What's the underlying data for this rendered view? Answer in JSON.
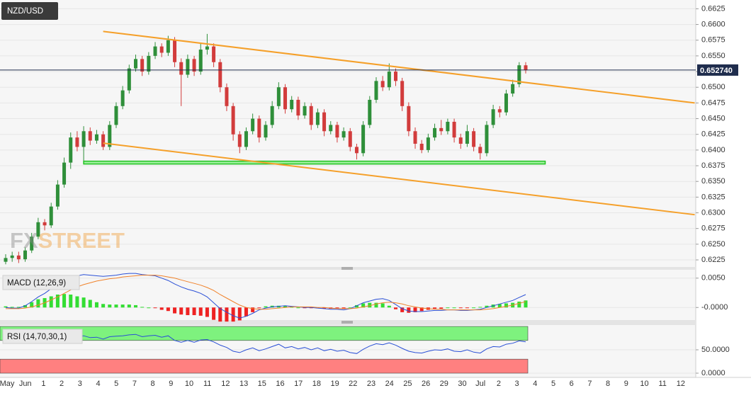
{
  "symbol": "NZD/USD",
  "watermark": [
    "FX",
    "STREET"
  ],
  "x_axis": {
    "labels": [
      "May",
      "Jun",
      "1",
      "2",
      "3",
      "4",
      "5",
      "7",
      "8",
      "9",
      "10",
      "11",
      "12",
      "13",
      "15",
      "16",
      "17",
      "18",
      "19",
      "22",
      "23",
      "24",
      "25",
      "26",
      "29",
      "30",
      "Jul",
      "2",
      "3",
      "4",
      "5",
      "6",
      "7",
      "8",
      "9",
      "10",
      "11",
      "12"
    ]
  },
  "chart_data": [
    {
      "type": "candlestick",
      "open": [
        0.6222,
        0.6228,
        0.6232,
        0.6226,
        0.624,
        0.6262,
        0.6285,
        0.628,
        0.631,
        0.6345,
        0.638,
        0.642,
        0.6405,
        0.643,
        0.6415,
        0.6425,
        0.6405,
        0.644,
        0.647,
        0.6495,
        0.653,
        0.6545,
        0.6525,
        0.655,
        0.6565,
        0.6555,
        0.6575,
        0.654,
        0.652,
        0.6545,
        0.6525,
        0.656,
        0.6565,
        0.654,
        0.65,
        0.647,
        0.6425,
        0.6405,
        0.643,
        0.645,
        0.642,
        0.644,
        0.647,
        0.65,
        0.6465,
        0.648,
        0.6455,
        0.647,
        0.644,
        0.646,
        0.643,
        0.644,
        0.642,
        0.643,
        0.6405,
        0.6395,
        0.644,
        0.648,
        0.651,
        0.65,
        0.6525,
        0.651,
        0.647,
        0.643,
        0.641,
        0.64,
        0.642,
        0.6435,
        0.643,
        0.6445,
        0.642,
        0.641,
        0.643,
        0.6405,
        0.6395,
        0.644,
        0.6465,
        0.646,
        0.649,
        0.6505,
        0.6535
      ],
      "high": [
        0.6234,
        0.6238,
        0.6238,
        0.6245,
        0.6268,
        0.6292,
        0.629,
        0.6316,
        0.6352,
        0.6388,
        0.6428,
        0.643,
        0.6438,
        0.6436,
        0.6432,
        0.643,
        0.6446,
        0.6476,
        0.6502,
        0.6536,
        0.6552,
        0.655,
        0.6556,
        0.6572,
        0.657,
        0.6582,
        0.658,
        0.6546,
        0.6552,
        0.655,
        0.657,
        0.6585,
        0.657,
        0.6545,
        0.6506,
        0.6475,
        0.643,
        0.6436,
        0.6458,
        0.6455,
        0.6446,
        0.6478,
        0.6508,
        0.6505,
        0.6486,
        0.6485,
        0.6476,
        0.6475,
        0.6466,
        0.6465,
        0.6446,
        0.6445,
        0.6436,
        0.6435,
        0.641,
        0.6446,
        0.6486,
        0.6516,
        0.6518,
        0.6538,
        0.653,
        0.6515,
        0.6476,
        0.6436,
        0.6416,
        0.6426,
        0.6442,
        0.6448,
        0.645,
        0.645,
        0.6426,
        0.644,
        0.6435,
        0.641,
        0.6446,
        0.6472,
        0.647,
        0.6496,
        0.6512,
        0.654,
        0.654
      ],
      "low": [
        0.6218,
        0.6222,
        0.622,
        0.6222,
        0.6236,
        0.6258,
        0.6272,
        0.6276,
        0.6305,
        0.634,
        0.637,
        0.6398,
        0.638,
        0.6408,
        0.641,
        0.64,
        0.64,
        0.6435,
        0.6465,
        0.649,
        0.6525,
        0.6518,
        0.652,
        0.6545,
        0.6548,
        0.655,
        0.6532,
        0.647,
        0.6515,
        0.6518,
        0.652,
        0.6552,
        0.6532,
        0.6492,
        0.6462,
        0.6415,
        0.6395,
        0.64,
        0.6425,
        0.6412,
        0.6415,
        0.6435,
        0.6465,
        0.6458,
        0.646,
        0.6448,
        0.645,
        0.6432,
        0.6435,
        0.6422,
        0.6425,
        0.6412,
        0.6415,
        0.6398,
        0.6385,
        0.639,
        0.6435,
        0.6475,
        0.6494,
        0.6495,
        0.6502,
        0.6462,
        0.6422,
        0.6402,
        0.6395,
        0.6396,
        0.6415,
        0.6424,
        0.6425,
        0.6412,
        0.6402,
        0.6405,
        0.6398,
        0.6385,
        0.639,
        0.6435,
        0.6452,
        0.6455,
        0.6485,
        0.65,
        0.6522
      ],
      "close": [
        0.6228,
        0.6232,
        0.6226,
        0.624,
        0.6262,
        0.6285,
        0.628,
        0.631,
        0.6345,
        0.638,
        0.642,
        0.6405,
        0.643,
        0.6415,
        0.6425,
        0.6405,
        0.644,
        0.647,
        0.6495,
        0.653,
        0.6545,
        0.6525,
        0.655,
        0.6565,
        0.6555,
        0.6575,
        0.654,
        0.652,
        0.6545,
        0.6525,
        0.656,
        0.6565,
        0.654,
        0.65,
        0.647,
        0.6425,
        0.6405,
        0.643,
        0.645,
        0.642,
        0.644,
        0.647,
        0.65,
        0.6465,
        0.648,
        0.6455,
        0.647,
        0.644,
        0.646,
        0.643,
        0.644,
        0.642,
        0.643,
        0.6405,
        0.6395,
        0.644,
        0.648,
        0.651,
        0.65,
        0.6525,
        0.651,
        0.647,
        0.643,
        0.641,
        0.64,
        0.642,
        0.6435,
        0.643,
        0.6445,
        0.642,
        0.641,
        0.643,
        0.6405,
        0.6395,
        0.644,
        0.6465,
        0.646,
        0.649,
        0.6505,
        0.6535,
        0.6527
      ],
      "up_color": "#2f8f3a",
      "down_color": "#d23c3c",
      "ylim": [
        0.6216,
        0.6639
      ],
      "yticks": [
        0.6625,
        {
          "value": 0.66,
          "label": "0.6600"
        },
        0.6575,
        {
          "value": 0.655,
          "label": "0.6550"
        },
        0.6525,
        {
          "value": 0.65,
          "label": "0.6500"
        },
        0.6475,
        {
          "value": 0.645,
          "label": "0.6450"
        },
        0.6425,
        {
          "value": 0.64,
          "label": "0.6400"
        },
        0.6375,
        {
          "value": 0.635,
          "label": "0.6350"
        },
        0.6325,
        {
          "value": 0.63,
          "label": "0.6300"
        },
        0.6275,
        {
          "value": 0.625,
          "label": "0.6250"
        },
        0.6225
      ],
      "grid": true,
      "last_price": {
        "value": 0.65274,
        "label": "0.652740",
        "color": "#1f2d4d"
      },
      "trendlines": [
        {
          "x": [
            15,
            106
          ],
          "values": [
            0.6589,
            0.6475
          ],
          "color": "#f5a02a"
        },
        {
          "x": [
            15,
            106
          ],
          "values": [
            0.6411,
            0.6297
          ],
          "color": "#f5a02a"
        }
      ],
      "support": {
        "x": [
          12,
          83
        ],
        "values": [
          0.638,
          0.638
        ],
        "color": "#22c222"
      }
    },
    {
      "type": "macd",
      "title": "MACD (12,26,9)",
      "ylim": [
        -0.0019,
        0.0063
      ],
      "yticks": [
        {
          "value": 0.005,
          "label": "0.0050"
        },
        {
          "value": 0,
          "label": "-0.0000"
        }
      ],
      "lines": [
        {
          "color": "#2a4fd6",
          "values": [
            0.0,
            -0.0001,
            -0.0001,
            0.0003,
            0.001,
            0.0018,
            0.0024,
            0.0032,
            0.004,
            0.0047,
            0.0052,
            0.0054,
            0.0056,
            0.0055,
            0.0054,
            0.0053,
            0.0054,
            0.0055,
            0.0057,
            0.0058,
            0.0058,
            0.0056,
            0.0055,
            0.0054,
            0.005,
            0.0046,
            0.004,
            0.0035,
            0.0031,
            0.0028,
            0.0024,
            0.0018,
            0.0008,
            -0.0002,
            -0.0008,
            -0.0014,
            -0.0018,
            -0.0015,
            -0.001,
            -0.0004,
            -0.0001,
            0.0001,
            0.0002,
            0.0003,
            0.0002,
            0.0001,
            0.0,
            0.0,
            -0.0001,
            -0.0002,
            -0.0003,
            -0.0003,
            -0.0004,
            -0.0002,
            0.0003,
            0.0008,
            0.0011,
            0.0014,
            0.0015,
            0.0012,
            0.0005,
            -0.0002,
            -0.0006,
            -0.0007,
            -0.0007,
            -0.0006,
            -0.0005,
            -0.0005,
            -0.0004,
            -0.0004,
            -0.0005,
            -0.0005,
            -0.0004,
            -0.0003,
            0.0,
            0.0003,
            0.0006,
            0.0009,
            0.0012,
            0.0017,
            0.0022
          ]
        },
        {
          "color": "#f0822a",
          "values": [
            -0.0002,
            -0.0002,
            -0.0002,
            -0.0001,
            0.0001,
            0.0004,
            0.0008,
            0.0013,
            0.0018,
            0.0024,
            0.003,
            0.0035,
            0.0039,
            0.0042,
            0.0045,
            0.0047,
            0.0049,
            0.005,
            0.0052,
            0.0053,
            0.0054,
            0.0055,
            0.0055,
            0.0055,
            0.0054,
            0.0052,
            0.005,
            0.0047,
            0.0044,
            0.0041,
            0.0038,
            0.0034,
            0.0029,
            0.0022,
            0.0016,
            0.001,
            0.0004,
            0.0,
            -0.0002,
            -0.0003,
            -0.0003,
            -0.0002,
            -0.0001,
            0.0,
            0.0001,
            0.0001,
            0.0001,
            0.0001,
            0.0,
            0.0,
            -0.0001,
            -0.0002,
            -0.0002,
            -0.0002,
            -0.0001,
            0.0001,
            0.0003,
            0.0006,
            0.0008,
            0.0009,
            0.0008,
            0.0006,
            0.0003,
            0.0001,
            -0.0001,
            -0.0002,
            -0.0003,
            -0.0003,
            -0.0004,
            -0.0004,
            -0.0004,
            -0.0004,
            -0.0004,
            -0.0004,
            -0.0003,
            -0.0002,
            0.0,
            0.0002,
            0.0004,
            0.0007,
            0.001
          ]
        }
      ],
      "histogram": {
        "up_color": "#33dd33",
        "down_color": "#ee2222",
        "values": [
          0.0002,
          0.0001,
          0.0001,
          0.0004,
          0.0009,
          0.0014,
          0.0016,
          0.0019,
          0.0022,
          0.0023,
          0.0022,
          0.0019,
          0.0017,
          0.0013,
          0.0009,
          0.0006,
          0.0005,
          0.0005,
          0.0005,
          0.0005,
          0.0004,
          0.0001,
          0,
          -0.0001,
          -0.0004,
          -0.0006,
          -0.001,
          -0.0012,
          -0.0013,
          -0.0013,
          -0.0014,
          -0.0016,
          -0.0021,
          -0.0024,
          -0.0024,
          -0.0024,
          -0.0022,
          -0.0015,
          -0.0008,
          -0.0001,
          0.0002,
          0.0003,
          0.0003,
          0.0003,
          0.0001,
          0,
          -0.0001,
          -0.0001,
          -0.0001,
          -0.0002,
          -0.0002,
          -0.0001,
          -0.0002,
          0,
          0.0004,
          0.0007,
          0.0008,
          0.0008,
          0.0007,
          0.0003,
          -0.0003,
          -0.0008,
          -0.0009,
          -0.0008,
          -0.0006,
          -0.0004,
          -0.0002,
          -0.0002,
          0,
          0,
          -0.0001,
          -0.0001,
          0,
          0.0001,
          0.0003,
          0.0005,
          0.0006,
          0.0007,
          0.0008,
          0.001,
          0.0012
        ]
      }
    },
    {
      "type": "rsi",
      "title": "RSI (14,70,30,1)",
      "ylim": [
        -7.6,
        101.5
      ],
      "yticks": [
        {
          "value": 50,
          "label": "50.0000"
        },
        {
          "value": 0,
          "label": "0.0000"
        }
      ],
      "zones": [
        {
          "from": 70,
          "to": 100,
          "color": "#7ef27e"
        },
        {
          "from": 0,
          "to": 30,
          "color": "#ff8080"
        }
      ],
      "color": "#2a4fd6",
      "values": [
        72,
        75,
        74,
        78,
        80,
        82,
        80,
        83,
        85,
        86,
        88,
        78,
        80,
        76,
        77,
        73,
        78,
        79,
        80,
        82,
        83,
        78,
        80,
        81,
        77,
        80,
        70,
        66,
        70,
        66,
        71,
        72,
        67,
        60,
        55,
        47,
        44,
        50,
        54,
        48,
        52,
        57,
        62,
        54,
        57,
        52,
        55,
        50,
        54,
        48,
        51,
        47,
        49,
        44,
        42,
        51,
        58,
        63,
        61,
        65,
        60,
        53,
        47,
        44,
        43,
        47,
        50,
        49,
        52,
        47,
        46,
        50,
        45,
        43,
        52,
        57,
        56,
        62,
        64,
        69,
        67
      ]
    }
  ]
}
